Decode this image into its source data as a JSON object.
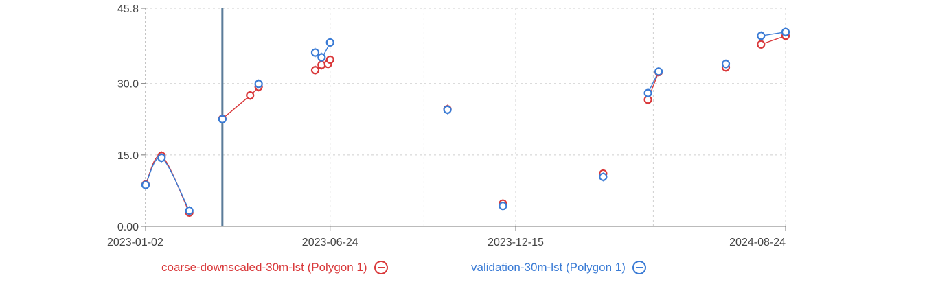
{
  "chart_data": {
    "type": "line",
    "x_axis": {
      "kind": "date",
      "min": "2023-01-02",
      "max": "2024-08-24",
      "tick_labels": [
        "2023-01-02",
        "2023-06-24",
        "2023-12-15",
        "2024-08-24"
      ],
      "minor_gridlines": [
        "2023-09-20",
        "2024-04-22"
      ]
    },
    "y_axis": {
      "ylim": [
        0,
        45.8
      ],
      "tick_labels": [
        "0.00",
        "15.0",
        "30.0",
        "45.8"
      ],
      "tick_values": [
        0,
        15,
        30,
        45.8
      ]
    },
    "grid": true,
    "cursor_date": "2023-03-15",
    "legend_placement": "bottom",
    "series": [
      {
        "name": "coarse-downscaled-30m-lst (Polygon 1)",
        "color": "#d9383a",
        "remove_icon": "minus-circle-icon",
        "points": [
          {
            "x": "2023-01-02",
            "y": 8.8
          },
          {
            "x": "2023-01-17",
            "y": 14.8
          },
          {
            "x": "2023-02-12",
            "y": 2.9
          },
          {
            "x": "2023-03-15",
            "y": 22.6
          },
          {
            "x": "2023-04-10",
            "y": 27.5
          },
          {
            "x": "2023-04-18",
            "y": 29.3
          },
          {
            "x": "2023-06-10",
            "y": 32.8
          },
          {
            "x": "2023-06-16",
            "y": 33.9
          },
          {
            "x": "2023-06-22",
            "y": 34.1
          },
          {
            "x": "2023-06-24",
            "y": 35.0
          },
          {
            "x": "2023-10-12",
            "y": 24.6
          },
          {
            "x": "2023-12-03",
            "y": 4.8
          },
          {
            "x": "2024-03-06",
            "y": 11.1
          },
          {
            "x": "2024-04-17",
            "y": 26.6
          },
          {
            "x": "2024-04-27",
            "y": 32.4
          },
          {
            "x": "2024-06-29",
            "y": 33.4
          },
          {
            "x": "2024-08-01",
            "y": 38.2
          },
          {
            "x": "2024-08-24",
            "y": 40.0
          }
        ]
      },
      {
        "name": "validation-30m-lst (Polygon 1)",
        "color": "#3a7bd5",
        "remove_icon": "minus-circle-icon",
        "points": [
          {
            "x": "2023-01-02",
            "y": 8.7
          },
          {
            "x": "2023-01-17",
            "y": 14.4
          },
          {
            "x": "2023-02-12",
            "y": 3.3
          },
          {
            "x": "2023-03-15",
            "y": 22.5
          },
          {
            "x": "2023-04-18",
            "y": 29.9
          },
          {
            "x": "2023-06-10",
            "y": 36.5
          },
          {
            "x": "2023-06-16",
            "y": 35.5
          },
          {
            "x": "2023-06-24",
            "y": 38.6
          },
          {
            "x": "2023-10-12",
            "y": 24.5
          },
          {
            "x": "2023-12-03",
            "y": 4.3
          },
          {
            "x": "2024-03-06",
            "y": 10.4
          },
          {
            "x": "2024-04-17",
            "y": 28.0
          },
          {
            "x": "2024-04-27",
            "y": 32.5
          },
          {
            "x": "2024-06-29",
            "y": 34.1
          },
          {
            "x": "2024-08-01",
            "y": 40.0
          },
          {
            "x": "2024-08-24",
            "y": 40.8
          }
        ]
      }
    ]
  }
}
